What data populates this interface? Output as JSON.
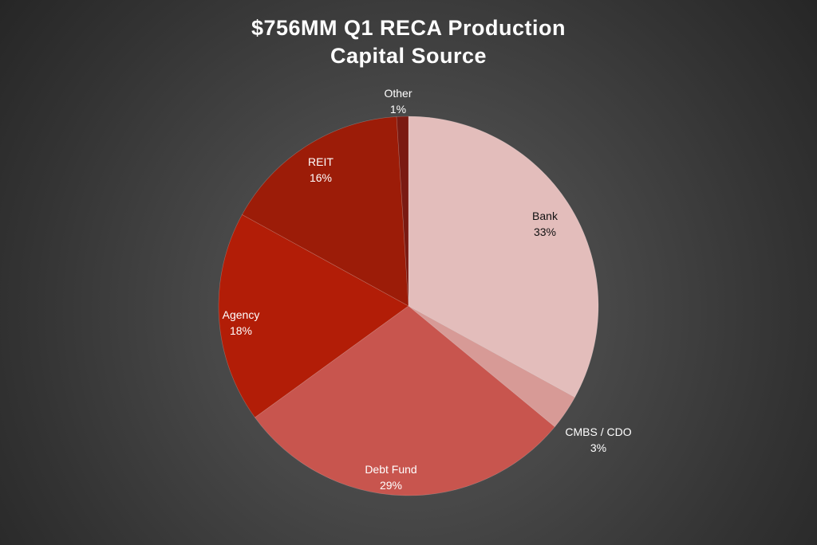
{
  "chart_data": {
    "type": "pie",
    "title": "$756MM Q1 RECA Production",
    "subtitle": "Capital Source",
    "slices": [
      {
        "name": "Bank",
        "value": 33,
        "label": "33%",
        "color": "#e3bdbb",
        "label_color": "#111111"
      },
      {
        "name": "CMBS / CDO",
        "value": 3,
        "label": "3%",
        "color": "#d79a96",
        "label_color": "#ffffff"
      },
      {
        "name": "Debt Fund",
        "value": 29,
        "label": "29%",
        "color": "#c8554e",
        "label_color": "#ffffff"
      },
      {
        "name": "Agency",
        "value": 18,
        "label": "18%",
        "color": "#b21d07",
        "label_color": "#ffffff"
      },
      {
        "name": "REIT",
        "value": 16,
        "label": "16%",
        "color": "#9c1c08",
        "label_color": "#ffffff"
      },
      {
        "name": "Other",
        "value": 1,
        "label": "1%",
        "color": "#7a1a12",
        "label_color": "#ffffff"
      }
    ]
  }
}
